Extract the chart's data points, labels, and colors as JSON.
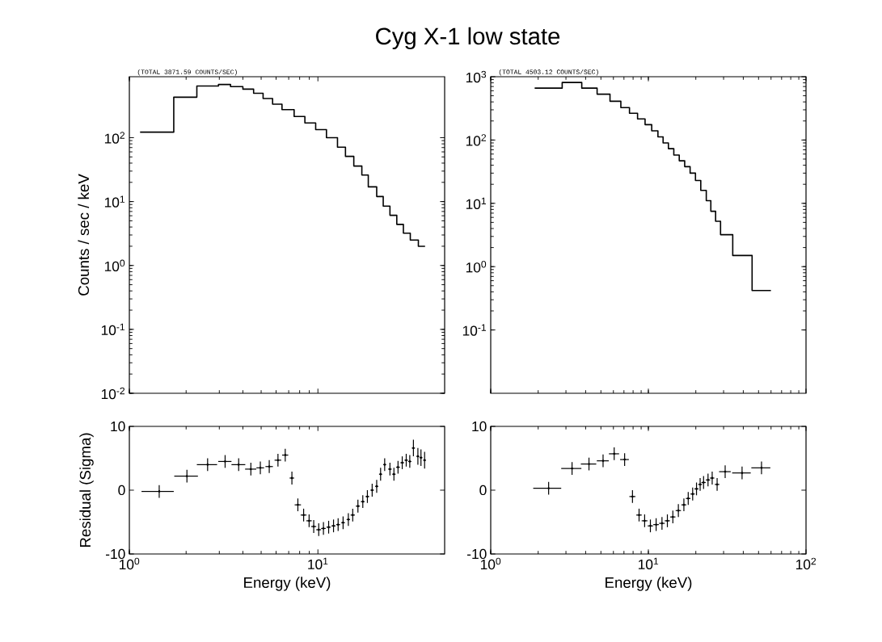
{
  "chart_data": [
    {
      "type": "histogram",
      "title": "Cyg X-1 low state",
      "ylabel": "Counts / sec / keV",
      "annotations": [
        "(TOTAL 3871.59 COUNTS/SEC)"
      ],
      "color": "#000000",
      "log": "xy",
      "tick_labels": "y",
      "bins": [
        1.14,
        1.72,
        2.28,
        2.97,
        3.44,
        4.0,
        4.56,
        5.12,
        5.75,
        6.45,
        7.48,
        8.53,
        9.73,
        11.1,
        12.7,
        14.0,
        15.5,
        17.1,
        18.5,
        20.5,
        22.2,
        24.1,
        26.2,
        28.4,
        30.9,
        34.1,
        37.0
      ],
      "values": [
        122,
        430,
        645,
        680,
        630,
        575,
        495,
        410,
        335,
        275,
        215,
        170,
        134,
        100,
        71,
        51,
        36,
        26,
        17,
        12,
        8.5,
        6.1,
        4.4,
        3.2,
        2.5,
        2.0
      ],
      "xlim": [
        1,
        47
      ],
      "xticks": [
        1,
        10
      ],
      "ylim": [
        0.01,
        900
      ],
      "yticks": [
        {
          "value": 0.01,
          "label": "10$^{-2}$"
        },
        {
          "value": 0.1,
          "label": "10$^{-1}$"
        },
        {
          "value": 1,
          "label": "10$^{0}$"
        },
        {
          "value": 10,
          "label": "10$^{1}$"
        },
        {
          "value": 100,
          "label": "10$^{2}$"
        }
      ]
    },
    {
      "type": "histogram",
      "annotations": [
        "(TOTAL 4503.12 COUNTS/SEC)"
      ],
      "color": "#000000",
      "log": "xy",
      "tick_labels": "y",
      "bins": [
        1.9,
        2.84,
        3.78,
        4.73,
        5.71,
        6.69,
        7.59,
        8.54,
        9.53,
        10.5,
        11.5,
        12.4,
        13.4,
        14.5,
        15.7,
        17.0,
        18.4,
        19.9,
        21.5,
        23.3,
        24.9,
        26.7,
        28.7,
        34.3,
        45.5,
        59.9
      ],
      "values": [
        660,
        810,
        660,
        530,
        410,
        325,
        265,
        215,
        175,
        140,
        112,
        90,
        73,
        58,
        47,
        38,
        30,
        23,
        16,
        11,
        7.5,
        5.2,
        3.2,
        1.5,
        0.42
      ],
      "xlim": [
        1,
        100
      ],
      "xticks": [
        1,
        10,
        100
      ],
      "ylim": [
        0.01,
        1000
      ],
      "yticks": [
        {
          "value": 0.1,
          "label": "10$^{-1}$"
        },
        {
          "value": 1,
          "label": "10$^{0}$"
        },
        {
          "value": 10,
          "label": "10$^{1}$"
        },
        {
          "value": 100,
          "label": "10$^{2}$"
        },
        {
          "value": 1000,
          "label": "10$^{3}$"
        }
      ]
    },
    {
      "type": "scatter",
      "xlabel": "Energy (keV)",
      "ylabel": "Residual (Sigma)",
      "color": "#000000",
      "marker": "circle",
      "log": "x",
      "x": [
        1.44,
        2.02,
        2.6,
        3.22,
        3.8,
        4.41,
        4.95,
        5.52,
        6.14,
        6.71,
        7.28,
        7.83,
        8.4,
        8.98,
        9.5,
        10.1,
        10.7,
        11.4,
        12.1,
        12.8,
        13.6,
        14.5,
        15.3,
        16.3,
        17.3,
        18.3,
        19.4,
        20.5,
        21.5,
        22.6,
        24.1,
        25.3,
        26.6,
        28.0,
        29.4,
        30.7,
        32.1,
        33.9,
        35.2,
        36.8
      ],
      "values": [
        -0.2,
        2.2,
        4.0,
        4.5,
        4.0,
        3.3,
        3.5,
        3.7,
        4.7,
        5.5,
        1.9,
        -2.3,
        -3.9,
        -4.8,
        -5.7,
        -6.2,
        -6.0,
        -5.8,
        -5.6,
        -5.4,
        -5.1,
        -4.6,
        -3.9,
        -2.5,
        -1.8,
        -1.0,
        0.0,
        0.6,
        2.5,
        4.0,
        3.3,
        2.5,
        3.6,
        4.3,
        4.7,
        4.5,
        6.6,
        5.3,
        5.1,
        4.7
      ],
      "xerrors": [
        0.28,
        0.29,
        0.32,
        0.26,
        0.32,
        0.3,
        0.23,
        0.25,
        0.25,
        0.25,
        0.2,
        0.3,
        0.3,
        0.3,
        0.3,
        0.3,
        0.3,
        0.3,
        0.3,
        0.3,
        0.3,
        0.3,
        0.4,
        0.4,
        0.4,
        0.4,
        0.4,
        0.4,
        0.4,
        0.4,
        0.5,
        0.5,
        0.6,
        0.6,
        0.6,
        0.6,
        0.6,
        0.6,
        0.6,
        0.6
      ],
      "errors": [
        1,
        1,
        1,
        1,
        1,
        1,
        1,
        1,
        1,
        1,
        1,
        1,
        1,
        1,
        1,
        1,
        1,
        1,
        1,
        1,
        1,
        1,
        1,
        1,
        1,
        1,
        1,
        1,
        1,
        1,
        1,
        1,
        1,
        1,
        1,
        1,
        1.3,
        1.3,
        1.3,
        1.3
      ],
      "xlim": [
        1,
        47
      ],
      "xticks": [
        {
          "value": 1,
          "label": "10$^{0}$"
        },
        {
          "value": 10,
          "label": "10$^{1}$"
        }
      ],
      "ylim": [
        -10,
        10
      ],
      "yticks": [
        -10,
        0,
        10
      ]
    },
    {
      "type": "scatter",
      "xlabel": "Energy (keV)",
      "color": "#000000",
      "marker": "circle",
      "log": "x",
      "x": [
        2.33,
        3.28,
        4.2,
        5.16,
        6.07,
        7.07,
        7.93,
        8.73,
        9.47,
        10.3,
        11.2,
        12.2,
        13.2,
        14.3,
        15.5,
        16.8,
        17.9,
        19.1,
        20.2,
        21.3,
        22.4,
        23.9,
        25.4,
        27.3,
        30.7,
        39.3,
        52.2
      ],
      "values": [
        0.3,
        3.4,
        4.1,
        4.6,
        5.7,
        4.8,
        -1.0,
        -3.9,
        -4.8,
        -5.6,
        -5.4,
        -5.2,
        -4.8,
        -4.2,
        -3.2,
        -2.3,
        -1.3,
        -0.6,
        0.2,
        0.9,
        1.2,
        1.6,
        1.9,
        0.9,
        2.9,
        2.7,
        3.5
      ],
      "xerrors": [
        0.47,
        0.48,
        0.47,
        0.45,
        0.45,
        0.45,
        0.35,
        0.35,
        0.4,
        0.4,
        0.45,
        0.5,
        0.5,
        0.55,
        0.6,
        0.6,
        0.6,
        0.6,
        0.6,
        0.6,
        0.7,
        0.75,
        0.8,
        0.9,
        2.6,
        5.3,
        7.2
      ],
      "errors": [
        1,
        1,
        1,
        1,
        1,
        1,
        1,
        1,
        1,
        1,
        1,
        1,
        1,
        1,
        1,
        1,
        1,
        1,
        1,
        1,
        1,
        1,
        1,
        1,
        1,
        1,
        1
      ],
      "xlim": [
        1,
        100
      ],
      "xticks": [
        {
          "value": 1,
          "label": "10$^{0}$"
        },
        {
          "value": 10,
          "label": "10$^{1}$"
        },
        {
          "value": 100,
          "label": "10$^{2}$"
        }
      ],
      "ylim": [
        -10,
        10
      ],
      "yticks": [
        -10,
        0,
        10
      ]
    }
  ]
}
